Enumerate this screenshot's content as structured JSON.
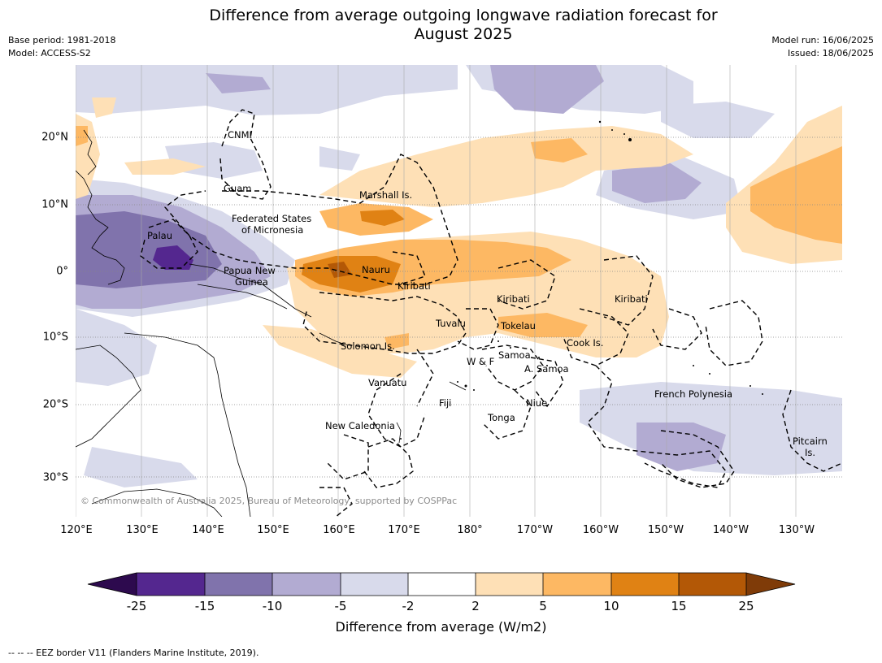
{
  "title_line1": "Difference from average outgoing longwave radiation forecast for",
  "title_line2": "August 2025",
  "meta": {
    "base_period": "Base period: 1981-2018",
    "model": "Model: ACCESS-S2",
    "model_run": "Model run: 16/06/2025",
    "issued": "Issued: 18/06/2025"
  },
  "longitude_labels": [
    "120°E",
    "130°E",
    "140°E",
    "150°E",
    "160°E",
    "170°E",
    "180°",
    "170°W",
    "160°W",
    "150°W",
    "140°W",
    "130°W"
  ],
  "latitude_labels": [
    "20°N",
    "10°N",
    "0°",
    "10°S",
    "20°S",
    "30°S"
  ],
  "places": {
    "cnmi": "CNMI",
    "guam": "Guam",
    "fsm_line1": "Federated States",
    "fsm_line2": "of Micronesia",
    "marshall": "Marshall Is.",
    "palau": "Palau",
    "png_line1": "Papua New",
    "png_line2": "Guinea",
    "nauru": "Nauru",
    "kiribati_west": "Kiribati",
    "kiribati_central": "Kiribati",
    "kiribati_east": "Kiribati",
    "tuvalu": "Tuvalu",
    "tokelau": "Tokelau",
    "cook": "Cook Is.",
    "solomon": "Solomon Is.",
    "samoa": "Samoa",
    "wf": "W & F",
    "asamoa": "A. Samoa",
    "vanuatu": "Vanuatu",
    "fiji": "Fiji",
    "niue": "Niue",
    "tonga": "Tonga",
    "newcal": "New Caledonia",
    "fp": "French Polynesia",
    "pitcairn_line1": "Pitcairn",
    "pitcairn_line2": "Is."
  },
  "copyright": "© Commonwealth of Australia 2025, Bureau of Meteorology, supported by COSPPac",
  "colorbar": {
    "title": "Difference from average (W/m2)",
    "tick_labels": [
      "-25",
      "-15",
      "-10",
      "-5",
      "-2",
      "2",
      "5",
      "10",
      "15",
      "25"
    ],
    "colors": {
      "below_-25": "#2d0a4e",
      "-25_to_-15": "#54278f",
      "-15_to_-10": "#8073ac",
      "-10_to_-5": "#b2abd2",
      "-5_to_-2": "#d8daeb",
      "-2_to_2": "#ffffff",
      "2_to_5": "#fee0b6",
      "5_to_10": "#fdb863",
      "10_to_15": "#e08214",
      "15_to_25": "#b35806",
      "above_25": "#7f3b08"
    }
  },
  "eez_legend": "--  --  -- EEZ border V11 (Flanders Marine Institute, 2019)."
}
